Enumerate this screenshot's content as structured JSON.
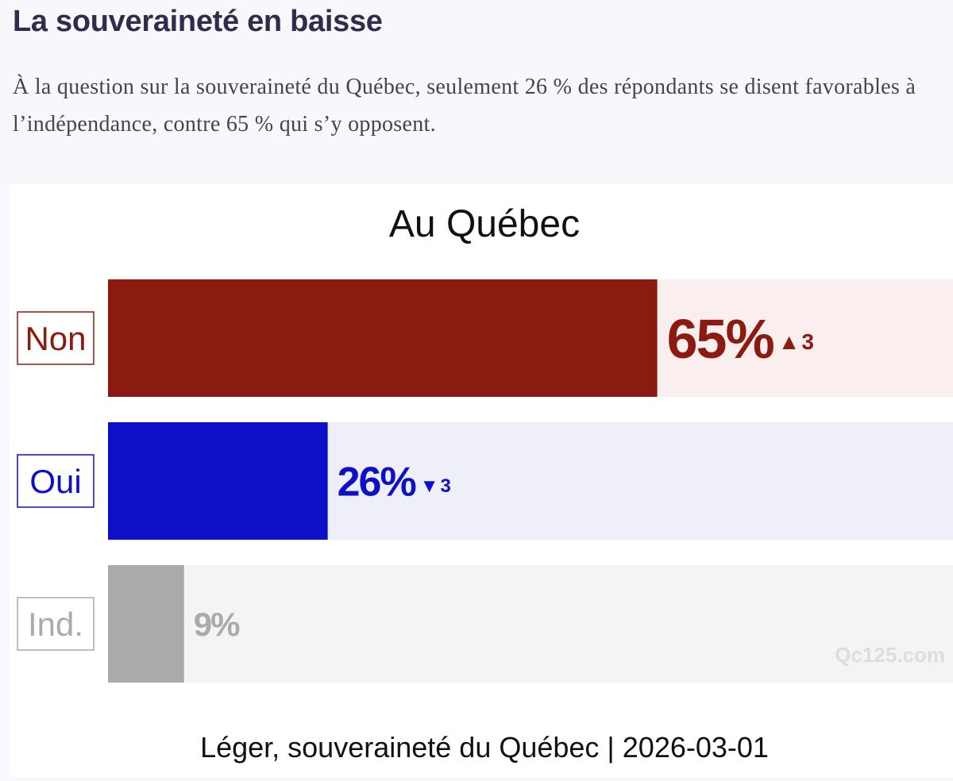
{
  "article": {
    "heading": "La souveraineté en baisse",
    "intro": "À la question sur la souveraineté du Québec, seulement 26 % des répondants se disent favorables à l’indépendance, contre 65 % qui s’y opposent."
  },
  "chart_data": {
    "type": "bar",
    "orientation": "horizontal",
    "title": "Au Québec",
    "categories": [
      "Non",
      "Oui",
      "Ind."
    ],
    "values": [
      65,
      26,
      9
    ],
    "value_labels": [
      "65%",
      "26%",
      "9%"
    ],
    "changes": [
      {
        "direction": "up",
        "symbol": "▲",
        "amount": "3"
      },
      {
        "direction": "down",
        "symbol": "▼",
        "amount": "3"
      },
      null
    ],
    "xlim": [
      0,
      100
    ],
    "unit": "%",
    "grid": false,
    "legend": "none",
    "watermark": "Qc125.com",
    "caption": "Léger, souveraineté du Québec | 2026-03-01"
  },
  "colors": {
    "non": "#8b1a10",
    "non_track": "#fbeeee",
    "oui": "#0e0fc8",
    "oui_track": "#eeeff9",
    "ind": "#aaaaaa",
    "ind_track": "#f4f4f4",
    "heading": "#2f2c4e",
    "intro": "#45434f"
  }
}
